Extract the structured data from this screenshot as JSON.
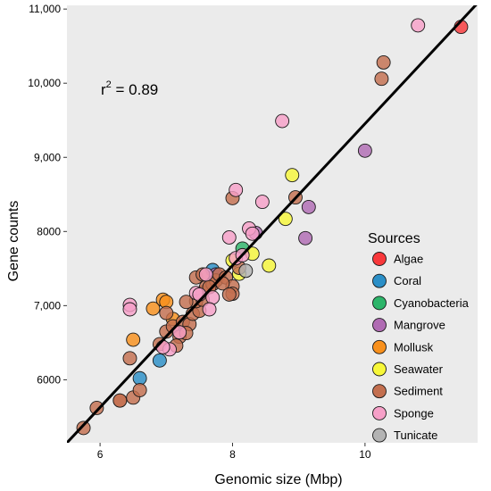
{
  "chart_data": {
    "type": "scatter",
    "xlabel": "Genomic size (Mbp)",
    "ylabel": "Gene counts",
    "xlim": [
      5.5,
      11.7
    ],
    "ylim": [
      5150,
      11050
    ],
    "x_ticks": [
      6,
      8,
      10
    ],
    "x_tick_labels": [
      "6",
      "8",
      "10"
    ],
    "y_ticks": [
      6000,
      7000,
      8000,
      9000,
      10000,
      11000
    ],
    "y_tick_labels": [
      "6000",
      "7,000",
      "8000",
      "9,000",
      "10,000",
      "11,000"
    ],
    "grid": false,
    "background": "#ebebeb",
    "annotation": {
      "base": "r",
      "superscript": "2",
      "rest": " = 0.89"
    },
    "regression_line": {
      "x": [
        5.5,
        11.7
      ],
      "y": [
        5150,
        11080
      ]
    },
    "legend": {
      "title": "Sources",
      "placement": "right"
    },
    "series": [
      {
        "name": "Algae",
        "color": "#f8383b",
        "points": [
          [
            11.45,
            10760
          ]
        ]
      },
      {
        "name": "Coral",
        "color": "#2b8fc7",
        "points": [
          [
            6.6,
            6020
          ],
          [
            6.9,
            6260
          ],
          [
            7.7,
            7480
          ]
        ]
      },
      {
        "name": "Cyanobacteria",
        "color": "#2db56a",
        "points": [
          [
            8.15,
            7770
          ]
        ]
      },
      {
        "name": "Mangrove",
        "color": "#b06bb3",
        "points": [
          [
            10.0,
            9090
          ],
          [
            9.15,
            8330
          ],
          [
            9.1,
            7910
          ],
          [
            8.35,
            7980
          ],
          [
            7.75,
            7420
          ]
        ]
      },
      {
        "name": "Mollusk",
        "color": "#f8901c",
        "points": [
          [
            6.5,
            6540
          ],
          [
            6.8,
            6960
          ],
          [
            6.95,
            7080
          ],
          [
            7.0,
            7050
          ],
          [
            7.1,
            6820
          ]
        ]
      },
      {
        "name": "Seawater",
        "color": "#f7f739",
        "points": [
          [
            8.9,
            8760
          ],
          [
            8.8,
            8170
          ],
          [
            8.55,
            7540
          ],
          [
            8.3,
            7700
          ],
          [
            8.1,
            7430
          ],
          [
            8.0,
            7610
          ]
        ]
      },
      {
        "name": "Sediment",
        "color": "#c36f4f",
        "points": [
          [
            5.75,
            5350
          ],
          [
            5.95,
            5620
          ],
          [
            6.3,
            5720
          ],
          [
            6.5,
            5760
          ],
          [
            6.6,
            5860
          ],
          [
            6.45,
            6290
          ],
          [
            6.9,
            6480
          ],
          [
            7.0,
            6650
          ],
          [
            7.1,
            6720
          ],
          [
            7.2,
            6580
          ],
          [
            7.25,
            6780
          ],
          [
            7.35,
            6750
          ],
          [
            7.4,
            6890
          ],
          [
            7.5,
            6930
          ],
          [
            7.45,
            7060
          ],
          [
            7.55,
            7180
          ],
          [
            7.6,
            7250
          ],
          [
            7.7,
            7290
          ],
          [
            7.75,
            7340
          ],
          [
            7.8,
            7420
          ],
          [
            7.9,
            7380
          ],
          [
            8.0,
            7260
          ],
          [
            8.0,
            7160
          ],
          [
            8.1,
            7510
          ],
          [
            7.3,
            7050
          ],
          [
            7.45,
            7380
          ],
          [
            7.55,
            7420
          ],
          [
            7.65,
            7250
          ],
          [
            7.85,
            7300
          ],
          [
            7.95,
            7150
          ],
          [
            8.0,
            8450
          ],
          [
            8.95,
            8460
          ],
          [
            10.25,
            10060
          ],
          [
            10.28,
            10280
          ],
          [
            6.3,
            5720
          ],
          [
            7.0,
            6900
          ],
          [
            7.3,
            6630
          ],
          [
            7.15,
            6460
          ],
          [
            7.55,
            7080
          ]
        ]
      },
      {
        "name": "Sponge",
        "color": "#f6a0c8",
        "points": [
          [
            10.8,
            10780
          ],
          [
            8.75,
            9490
          ],
          [
            8.45,
            8400
          ],
          [
            8.05,
            8560
          ],
          [
            8.25,
            8040
          ],
          [
            8.3,
            7970
          ],
          [
            7.95,
            7920
          ],
          [
            8.05,
            7640
          ],
          [
            7.6,
            7420
          ],
          [
            7.7,
            7110
          ],
          [
            7.65,
            6950
          ],
          [
            7.45,
            7170
          ],
          [
            7.2,
            6640
          ],
          [
            7.05,
            6410
          ],
          [
            6.45,
            7010
          ],
          [
            6.45,
            6950
          ],
          [
            6.95,
            6440
          ],
          [
            7.5,
            7150
          ],
          [
            8.15,
            7680
          ]
        ]
      },
      {
        "name": "Tunicate",
        "color": "#b3b3b3",
        "points": [
          [
            8.2,
            7470
          ]
        ]
      }
    ]
  }
}
